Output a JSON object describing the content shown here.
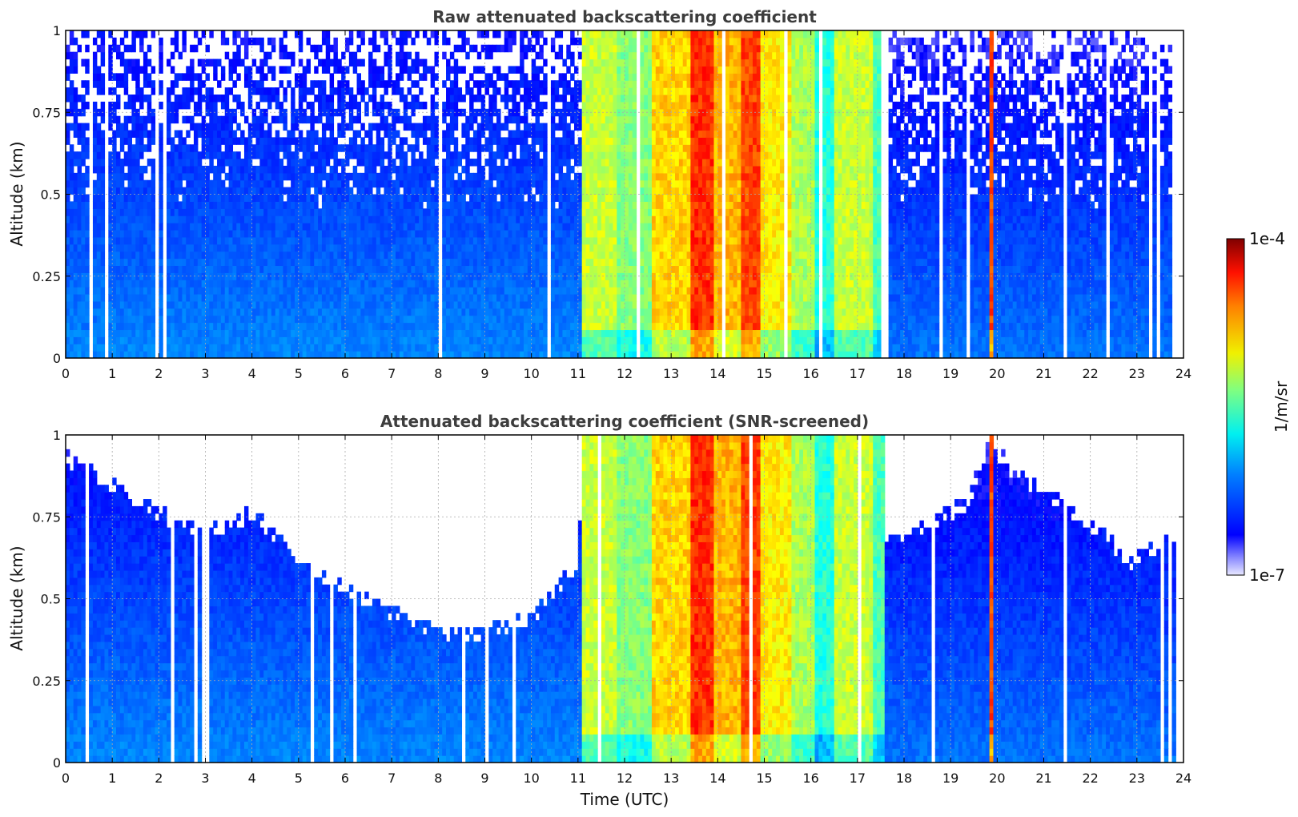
{
  "chart_data": [
    {
      "type": "heatmap",
      "title": "Raw attenuated backscattering coefficient",
      "xlabel": "",
      "ylabel": "Altitude (km)",
      "xlim": [
        0,
        24
      ],
      "ylim": [
        0,
        1
      ],
      "x_ticks": [
        "0",
        "1",
        "2",
        "3",
        "4",
        "5",
        "6",
        "7",
        "8",
        "9",
        "10",
        "11",
        "12",
        "13",
        "14",
        "15",
        "16",
        "17",
        "18",
        "19",
        "20",
        "21",
        "22",
        "23",
        "24"
      ],
      "y_ticks": [
        "0",
        "0.25",
        "0.5",
        "0.75",
        "1"
      ],
      "grid": true,
      "screened": false,
      "time_segments": [
        {
          "t0": 0.0,
          "t1": 11.1,
          "level": 0.22
        },
        {
          "t0": 11.1,
          "t1": 11.8,
          "level": 0.55
        },
        {
          "t0": 11.8,
          "t1": 12.6,
          "level": 0.48
        },
        {
          "t0": 12.6,
          "t1": 13.4,
          "level": 0.65
        },
        {
          "t0": 13.4,
          "t1": 13.9,
          "level": 0.82
        },
        {
          "t0": 13.9,
          "t1": 14.5,
          "level": 0.68
        },
        {
          "t0": 14.5,
          "t1": 14.9,
          "level": 0.8
        },
        {
          "t0": 14.9,
          "t1": 15.6,
          "level": 0.62
        },
        {
          "t0": 15.6,
          "t1": 16.1,
          "level": 0.52
        },
        {
          "t0": 16.1,
          "t1": 16.5,
          "level": 0.38
        },
        {
          "t0": 16.5,
          "t1": 17.3,
          "level": 0.55
        },
        {
          "t0": 17.3,
          "t1": 17.6,
          "level": 0.42
        },
        {
          "t0": 17.6,
          "t1": 19.8,
          "level": 0.2
        },
        {
          "t0": 19.8,
          "t1": 19.95,
          "level": 0.8
        },
        {
          "t0": 19.95,
          "t1": 23.85,
          "level": 0.2
        }
      ]
    },
    {
      "type": "heatmap",
      "title": "Attenuated backscattering coefficient (SNR-screened)",
      "xlabel": "Time (UTC)",
      "ylabel": "Altitude (km)",
      "xlim": [
        0,
        24
      ],
      "ylim": [
        0,
        1
      ],
      "x_ticks": [
        "0",
        "1",
        "2",
        "3",
        "4",
        "5",
        "6",
        "7",
        "8",
        "9",
        "10",
        "11",
        "12",
        "13",
        "14",
        "15",
        "16",
        "17",
        "18",
        "19",
        "20",
        "21",
        "22",
        "23",
        "24"
      ],
      "y_ticks": [
        "0",
        "0.25",
        "0.5",
        "0.75",
        "1"
      ],
      "grid": true,
      "screened": true,
      "snr_top_altitude_km": [
        {
          "t": 0.0,
          "alt": 0.95
        },
        {
          "t": 1.0,
          "alt": 0.87
        },
        {
          "t": 2.0,
          "alt": 0.78
        },
        {
          "t": 3.0,
          "alt": 0.72
        },
        {
          "t": 4.0,
          "alt": 0.78
        },
        {
          "t": 4.8,
          "alt": 0.67
        },
        {
          "t": 5.5,
          "alt": 0.58
        },
        {
          "t": 6.5,
          "alt": 0.52
        },
        {
          "t": 7.5,
          "alt": 0.44
        },
        {
          "t": 8.5,
          "alt": 0.41
        },
        {
          "t": 9.5,
          "alt": 0.43
        },
        {
          "t": 10.3,
          "alt": 0.5
        },
        {
          "t": 11.0,
          "alt": 0.64
        },
        {
          "t": 11.1,
          "alt": 1.0
        },
        {
          "t": 17.4,
          "alt": 1.0
        },
        {
          "t": 17.6,
          "alt": 0.68
        },
        {
          "t": 18.5,
          "alt": 0.74
        },
        {
          "t": 19.4,
          "alt": 0.82
        },
        {
          "t": 19.8,
          "alt": 1.0
        },
        {
          "t": 20.4,
          "alt": 0.9
        },
        {
          "t": 21.5,
          "alt": 0.8
        },
        {
          "t": 22.3,
          "alt": 0.72
        },
        {
          "t": 22.8,
          "alt": 0.62
        },
        {
          "t": 23.85,
          "alt": 0.72
        }
      ]
    }
  ],
  "colorbar": {
    "label": "1/m/sr",
    "min_label": "1e-7",
    "max_label": "1e-4",
    "colormap": "jet",
    "scale": "log"
  }
}
